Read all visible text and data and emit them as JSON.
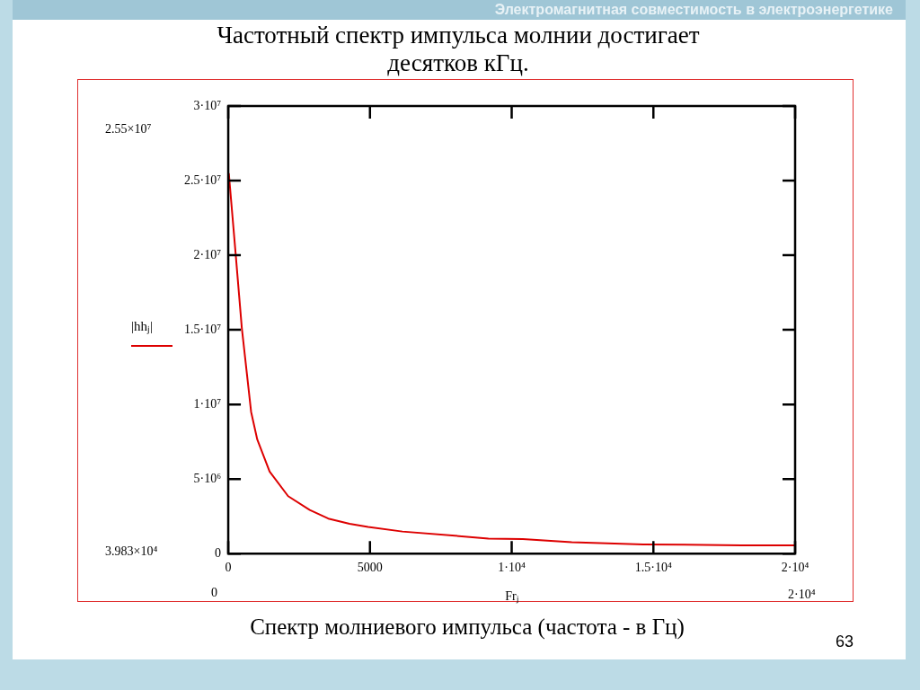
{
  "chart_data": {
    "type": "line",
    "title": "Частотный спектр импульса молнии достигает десятков кГц.",
    "xlabel": "Frⱼ",
    "ylabel": "|hhⱼ|",
    "x": [
      20,
      261,
      480,
      807,
      1024,
      1460,
      2113,
      2876,
      3530,
      4280,
      4935,
      6144,
      8000,
      9180,
      10390,
      12120,
      14640,
      18120,
      20000
    ],
    "series": [
      {
        "color": "#dd0000",
        "values": [
          25500000,
          20100000,
          15100000,
          9500000,
          7650000,
          5500000,
          3850000,
          2920000,
          2350000,
          2000000,
          1790000,
          1480000,
          1200000,
          1000000,
          970000,
          760000,
          620000,
          560000,
          550000
        ]
      }
    ],
    "xlim": [
      0,
      20000
    ],
    "xticks": [
      0,
      5000,
      {
        "value": 10000,
        "label": "1·10⁴"
      },
      {
        "value": 15000,
        "label": "1.5·10⁴"
      },
      {
        "value": 20000,
        "label": "2·10⁴"
      }
    ],
    "ylim": [
      0,
      30000000
    ],
    "yticks": [
      0,
      {
        "value": 5000000,
        "label": "5·10⁶"
      },
      {
        "value": 10000000,
        "label": "1·10⁷"
      },
      {
        "value": 15000000,
        "label": "1.5·10⁷"
      },
      {
        "value": 20000000,
        "label": "2·10⁷"
      },
      {
        "value": 25000000,
        "label": "2.5·10⁷"
      },
      {
        "value": 30000000,
        "label": "3·10⁷"
      }
    ],
    "grid": false,
    "legend": false,
    "marker": "none",
    "line_style": "solid",
    "annotations": [
      "Электромагнитная совместимость в электроэнергетике",
      "2.55×10⁷",
      "3.983×10⁴",
      "0",
      "2·10⁴",
      "Спектр молниевого импульса (частота - в Гц)",
      "63"
    ]
  }
}
